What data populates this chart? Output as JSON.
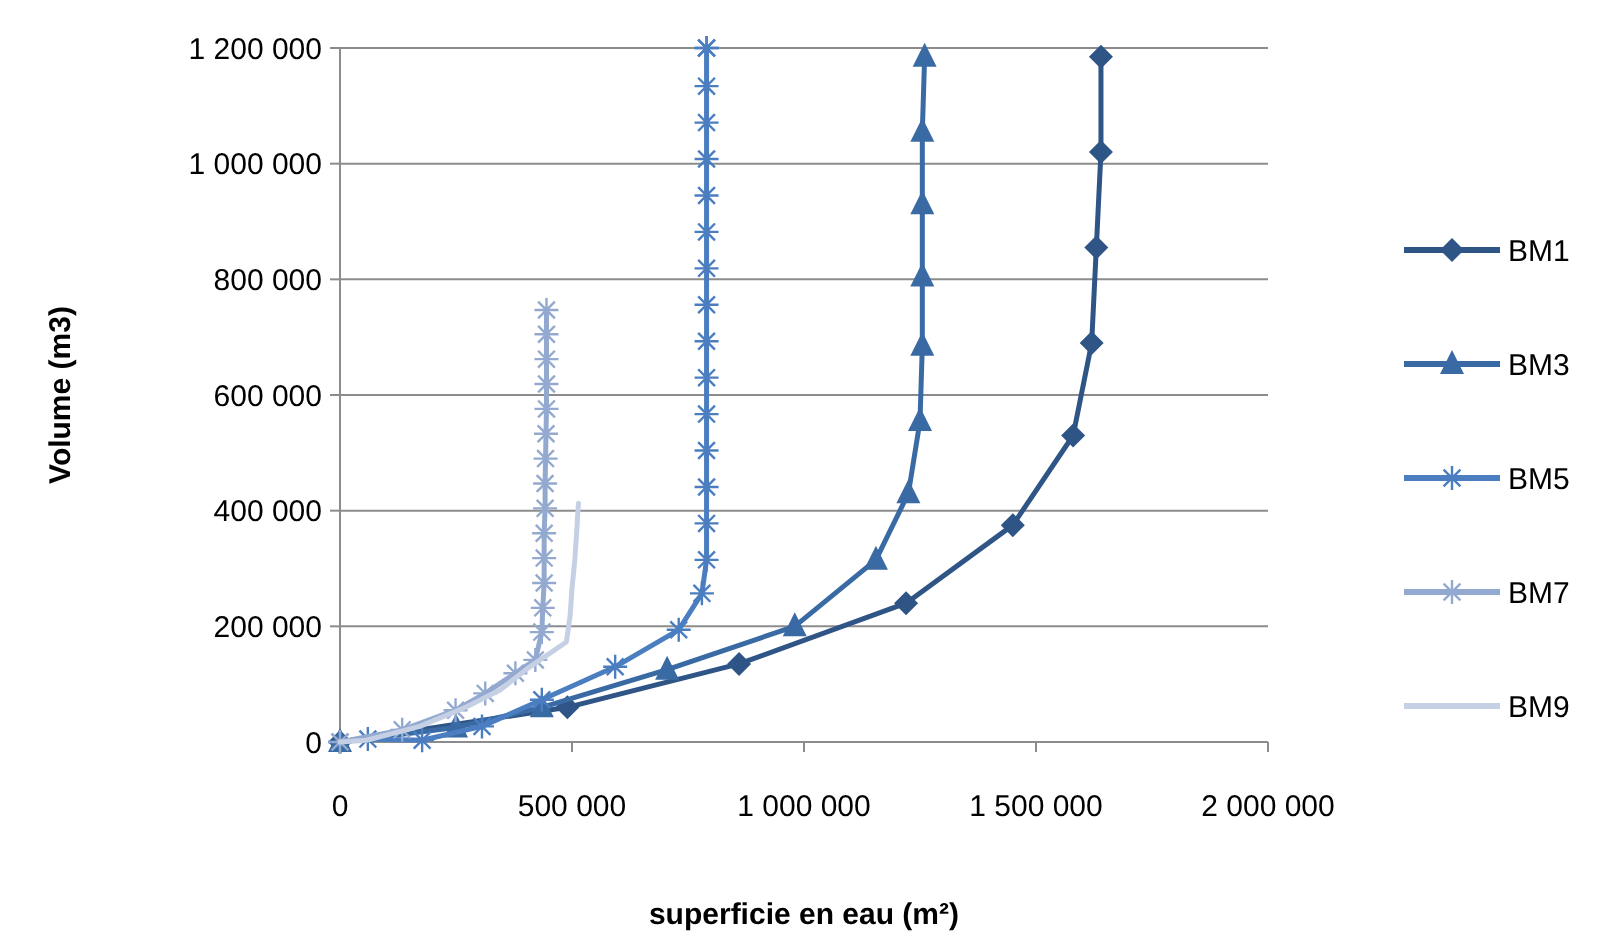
{
  "chart_data": {
    "type": "line",
    "xlabel": "superficie en eau (m²)",
    "ylabel": "Volume (m3)",
    "xlim": [
      0,
      2000000
    ],
    "ylim": [
      0,
      1200000
    ],
    "xticks": [
      0,
      {
        "value": 500000,
        "label": "500 000"
      },
      {
        "value": 1000000,
        "label": "1 000 000"
      },
      {
        "value": 1500000,
        "label": "1 500 000"
      },
      {
        "value": 2000000,
        "label": "2 000 000"
      }
    ],
    "yticks": [
      0,
      {
        "value": 200000,
        "label": "200 000"
      },
      {
        "value": 400000,
        "label": "400 000"
      },
      {
        "value": 600000,
        "label": "600 000"
      },
      {
        "value": 800000,
        "label": "800 000"
      },
      {
        "value": 1000000,
        "label": "1 000 000"
      },
      {
        "value": 1200000,
        "label": "1 200 000"
      }
    ],
    "grid": "y",
    "legend": "right",
    "series": [
      {
        "name": "BM1",
        "color": "#2f5486",
        "marker": "diamond",
        "x": [
          0,
          50000,
          150000,
          300000,
          490000,
          860000,
          1220000,
          1450000,
          1580000,
          1620000,
          1630000,
          1640000,
          1640000
        ],
        "values": [
          0,
          null,
          null,
          null,
          60000,
          135000,
          240000,
          375000,
          530000,
          690000,
          855000,
          1020000,
          1185000
        ]
      },
      {
        "name": "BM3",
        "color": "#3a6aa4",
        "marker": "triangle",
        "x": [
          0,
          100000,
          250000,
          435000,
          705000,
          980000,
          1155000,
          1225000,
          1250000,
          1255000,
          1255000,
          1255000,
          1255000,
          1260000
        ],
        "values": [
          0,
          null,
          25000,
          60000,
          125000,
          200000,
          315000,
          430000,
          555000,
          685000,
          805000,
          930000,
          1055000,
          1185000
        ]
      },
      {
        "name": "BM5",
        "color": "#4a7ec0",
        "marker": "cross",
        "x": [
          0,
          60000,
          177000,
          306000,
          435000,
          593000,
          730000,
          780000,
          790000,
          790000,
          790000,
          790000,
          790000,
          790000,
          790000,
          790000,
          790000,
          790000,
          790000,
          790000,
          790000,
          790000,
          790000,
          790000
        ],
        "values": [
          0,
          5000,
          3000,
          27000,
          73000,
          130000,
          194000,
          257000,
          315000,
          378000,
          441000,
          504000,
          567000,
          630000,
          693000,
          756000,
          819000,
          882000,
          945000,
          1008000,
          1071000,
          1134000,
          1200000,
          1200000
        ]
      },
      {
        "name": "BM7",
        "color": "#93a9cf",
        "marker": "cross",
        "x": [
          0,
          134000,
          249000,
          313000,
          378000,
          421000,
          435000,
          437000,
          440000,
          440000,
          440000,
          442000,
          442000,
          443000,
          444000,
          445000,
          445000,
          445000,
          445000,
          445000
        ],
        "values": [
          0,
          21000,
          55000,
          84000,
          119000,
          142000,
          190000,
          232000,
          275000,
          318000,
          361000,
          404000,
          447000,
          490000,
          533000,
          576000,
          619000,
          662000,
          705000,
          747000
        ]
      },
      {
        "name": "BM9",
        "color": "#c5d0e4",
        "marker": "none",
        "x": [
          0,
          57000,
          172000,
          273000,
          345000,
          409000,
          488000,
          492000,
          496000,
          498000,
          500000,
          503000,
          506000,
          508000,
          510000,
          512000,
          514000
        ],
        "values": [
          0,
          3000,
          27000,
          61000,
          90000,
          130000,
          173000,
          196000,
          219000,
          243000,
          266000,
          290000,
          314000,
          338000,
          361000,
          390000,
          413000
        ]
      }
    ]
  }
}
